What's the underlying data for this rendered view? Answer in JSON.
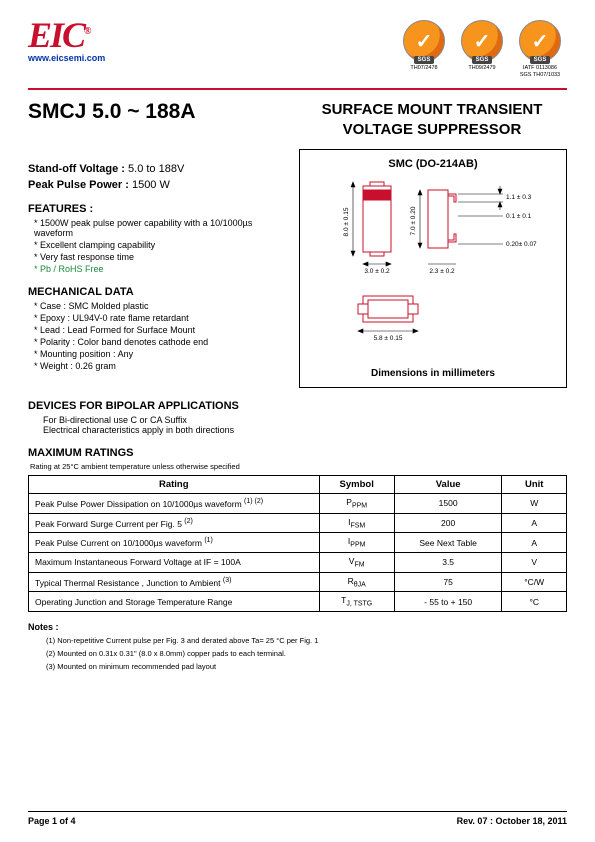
{
  "header": {
    "logo": "EIC",
    "url": "www.eicsemi.com",
    "certs": [
      {
        "sgs": "SGS",
        "label1": "TH07/2478",
        "label2": ""
      },
      {
        "sgs": "SGS",
        "label1": "TH09/2479",
        "label2": ""
      },
      {
        "sgs": "SGS",
        "label1": "IATF 0113086",
        "label2": "SGS TH07/1033"
      }
    ]
  },
  "title": {
    "part": "SMCJ 5.0 ~ 188A",
    "main": "SURFACE MOUNT TRANSIENT VOLTAGE SUPPRESSOR"
  },
  "specs": {
    "standoff_label": "Stand-off Voltage :",
    "standoff_value": "5.0 to 188V",
    "power_label": "Peak Pulse Power :",
    "power_value": "1500 W"
  },
  "features": {
    "head": "FEATURES :",
    "items": [
      "1500W peak pulse power capability with a 10/1000µs waveform",
      "Excellent clamping capability",
      "Very fast response time"
    ],
    "green_item": "Pb / RoHS Free"
  },
  "mechanical": {
    "head": "MECHANICAL DATA",
    "items": [
      "Case :  SMC Molded plastic",
      "Epoxy : UL94V-0 rate flame retardant",
      "Lead : Lead Formed for Surface Mount",
      "Polarity : Color band denotes cathode end",
      "Mounting  position : Any",
      "Weight :  0.26 gram"
    ]
  },
  "package": {
    "title": "SMC (DO-214AB)",
    "caption": "Dimensions in millimeters",
    "dims": {
      "d1": "8.0 ± 0.15",
      "d2": "3.0 ± 0.2",
      "d3": "5.8 ± 0.15",
      "d4": "7.0 ± 0.20",
      "d5": "2.3 ± 0.2",
      "d6": "1.1 ± 0.3",
      "d7": "0.1 ± 0.1",
      "d8": "0.20± 0.07"
    }
  },
  "bipolar": {
    "head": "DEVICES FOR BIPOLAR APPLICATIONS",
    "line1": "For Bi-directional use C or CA Suffix",
    "line2": "Electrical characteristics apply in both directions"
  },
  "ratings": {
    "head": "MAXIMUM RATINGS",
    "note": "Rating at 25°C ambient temperature unless otherwise specified",
    "columns": [
      "Rating",
      "Symbol",
      "Value",
      "Unit"
    ],
    "rows": [
      {
        "rating": "Peak Pulse Power Dissipation on 10/1000µs waveform",
        "sup": "(1) (2)",
        "symbol_main": "P",
        "symbol_sub": "PPM",
        "value": "1500",
        "unit": "W"
      },
      {
        "rating": "Peak Forward Surge Current per Fig. 5",
        "sup": "(2)",
        "symbol_main": "I",
        "symbol_sub": "FSM",
        "value": "200",
        "unit": "A"
      },
      {
        "rating": "Peak Pulse Current on 10/1000µs waveform",
        "sup": "(1)",
        "symbol_main": "I",
        "symbol_sub": "PPM",
        "value": "See Next Table",
        "unit": "A"
      },
      {
        "rating": "Maximum Instantaneous Forward Voltage at IF = 100A",
        "sup": "",
        "symbol_main": "V",
        "symbol_sub": "FM",
        "value": "3.5",
        "unit": "V"
      },
      {
        "rating": "Typical Thermal Resistance , Junction to Ambient",
        "sup": "(3)",
        "symbol_main": "R",
        "symbol_sub": "θJA",
        "value": "75",
        "unit": "°C/W"
      },
      {
        "rating": "Operating Junction and Storage Temperature Range",
        "sup": "",
        "symbol_main": "T",
        "symbol_sub": "J, TSTG",
        "value": "- 55 to + 150",
        "unit": "°C"
      }
    ]
  },
  "notes": {
    "head": "Notes :",
    "items": [
      "(1) Non-repetitive Current pulse per Fig. 3 and derated above Ta= 25 °C per Fig. 1",
      "(2) Mounted on 0.31x 0.31\" (8.0 x 8.0mm) copper pads to each terminal.",
      "(3) Mounted on minimum recommended pad layout"
    ]
  },
  "footer": {
    "left": "Page 1 of 4",
    "right": "Rev. 07 : October 18, 2011"
  }
}
